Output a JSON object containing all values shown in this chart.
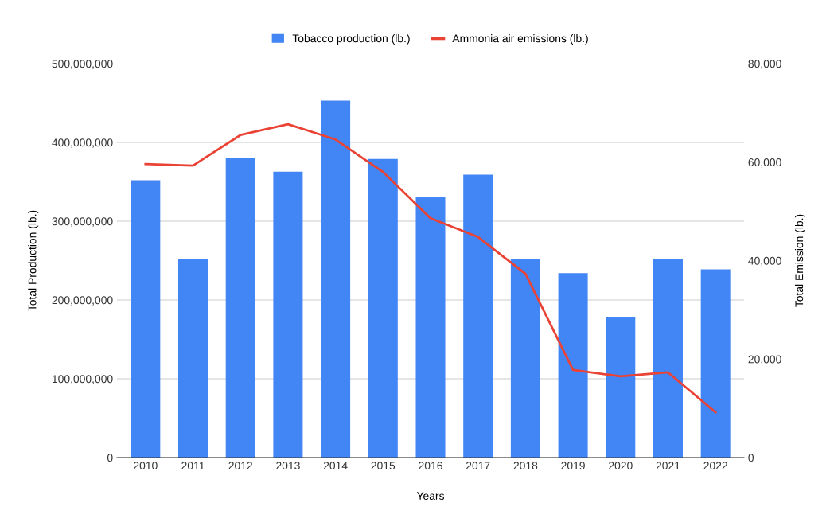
{
  "chart_data": {
    "type": "bar",
    "xlabel": "Years",
    "ylabel": "Total Production (lb.)",
    "y2label": "Total Emission (lb.)",
    "categories": [
      "2010",
      "2011",
      "2012",
      "2013",
      "2014",
      "2015",
      "2016",
      "2017",
      "2018",
      "2019",
      "2020",
      "2021",
      "2022"
    ],
    "series": [
      {
        "name": "Tobacco production (lb.)",
        "color": "#4285f4",
        "values": [
          352000000,
          252000000,
          380000000,
          363000000,
          453000000,
          379000000,
          331000000,
          359000000,
          252000000,
          234000000,
          178000000,
          252000000,
          239000000
        ]
      },
      {
        "name": "Ammonia air emissions (lb.)",
        "type": "line",
        "axis": "y2",
        "color": "#ea4335",
        "values": [
          59600,
          59300,
          65500,
          67700,
          64600,
          58000,
          48600,
          44800,
          37300,
          17800,
          16500,
          17300,
          9200
        ]
      }
    ],
    "ylim": [
      0,
      500000000
    ],
    "yticks": [
      {
        "value": 0,
        "label": "0"
      },
      {
        "value": 100000000,
        "label": "100,000,000"
      },
      {
        "value": 200000000,
        "label": "200,000,000"
      },
      {
        "value": 300000000,
        "label": "300,000,000"
      },
      {
        "value": 400000000,
        "label": "400,000,000"
      },
      {
        "value": 500000000,
        "label": "500,000,000"
      }
    ],
    "y2lim": [
      0,
      80000
    ],
    "y2ticks": [
      {
        "value": 0,
        "label": "0"
      },
      {
        "value": 20000,
        "label": "20,000"
      },
      {
        "value": 40000,
        "label": "40,000"
      },
      {
        "value": 60000,
        "label": "60,000"
      },
      {
        "value": 80000,
        "label": "80,000"
      }
    ],
    "grid": "y",
    "legend": "top",
    "marker": "none",
    "line_style": "solid"
  }
}
